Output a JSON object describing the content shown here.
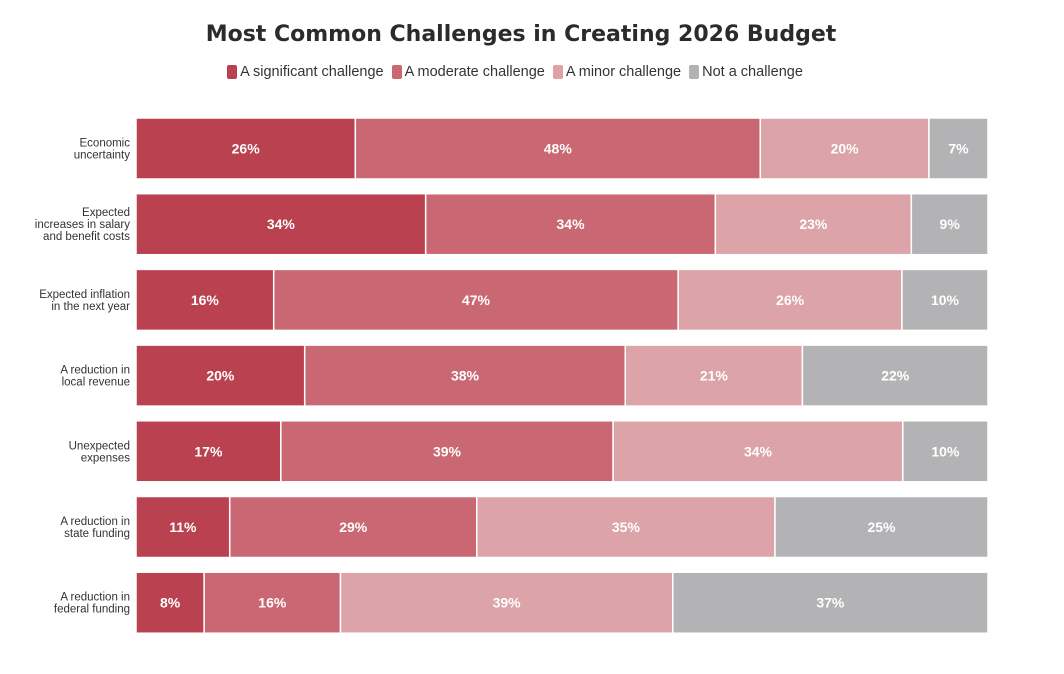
{
  "chart_data": {
    "type": "bar",
    "orientation": "horizontal",
    "stacked": true,
    "title": "Most Common Challenges in Creating 2026 Budget",
    "legend_position": "top",
    "categories": [
      "Economic uncertainty",
      "Expected increases in salary and benefit costs",
      "Expected inflation in the next year",
      "A reduction in local revenue",
      "Unexpected expenses",
      "A reduction in state funding",
      "A reduction in federal funding"
    ],
    "category_lines": [
      [
        "Economic",
        "uncertainty"
      ],
      [
        "Expected",
        "increases in salary",
        "and benefit costs"
      ],
      [
        "Expected inflation",
        "in the next year"
      ],
      [
        "A reduction in",
        "local revenue"
      ],
      [
        "Unexpected",
        "expenses"
      ],
      [
        "A reduction in",
        "state funding"
      ],
      [
        "A reduction in",
        "federal funding"
      ]
    ],
    "series": [
      {
        "name": "A significant challenge",
        "color": "#b94150",
        "values": [
          26,
          34,
          16,
          20,
          17,
          11,
          8
        ]
      },
      {
        "name": "A moderate challenge",
        "color": "#c96872",
        "values": [
          48,
          34,
          47,
          38,
          39,
          29,
          16
        ]
      },
      {
        "name": "A minor challenge",
        "color": "#dca3a8",
        "values": [
          20,
          23,
          26,
          21,
          34,
          35,
          39
        ]
      },
      {
        "name": "Not a challenge",
        "color": "#b3b3b5",
        "values": [
          7,
          9,
          10,
          22,
          10,
          25,
          37
        ]
      }
    ],
    "value_suffix": "%",
    "grid": false
  }
}
